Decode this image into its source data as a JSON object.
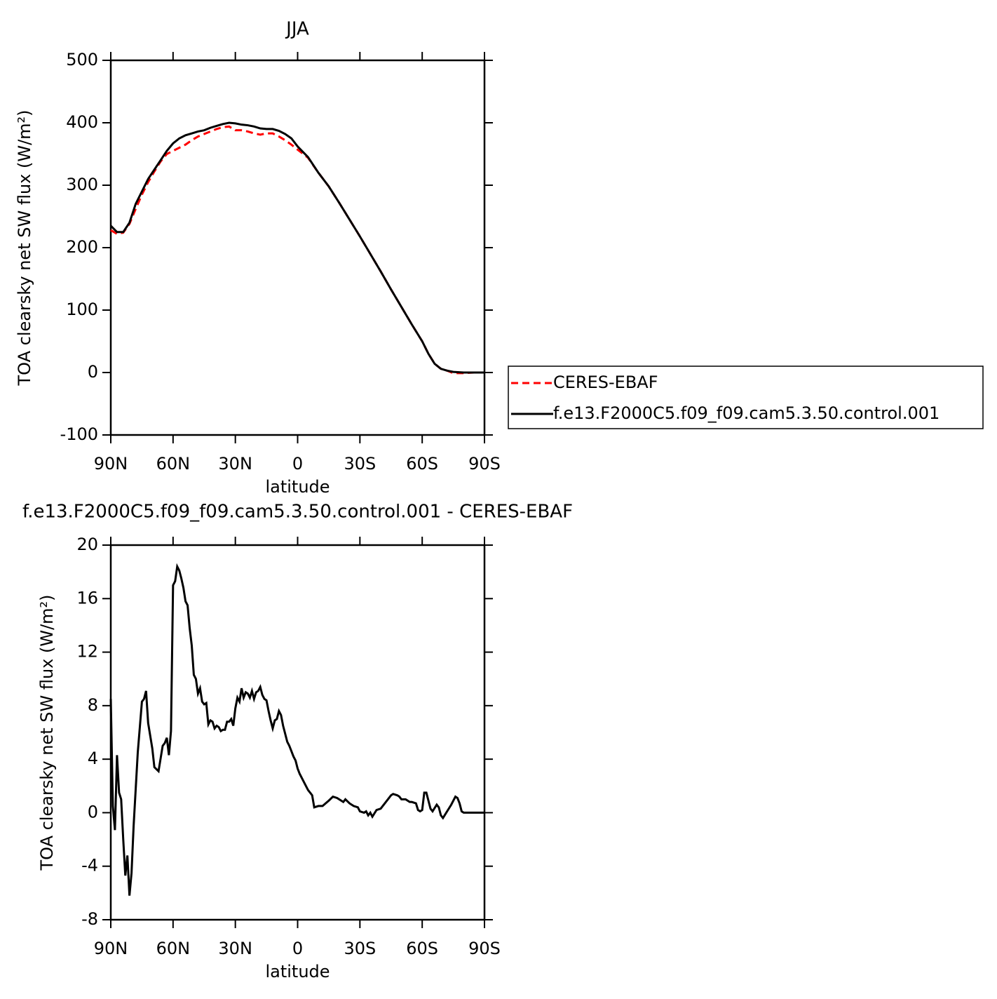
{
  "chart_data": [
    {
      "type": "line",
      "title": "JJA",
      "xlabel": "latitude",
      "ylabel": "TOA clearsky net SW flux (W/m²)",
      "xlim": [
        90,
        -90
      ],
      "xticks": [
        {
          "value": 90,
          "label": "90N"
        },
        {
          "value": 60,
          "label": "60N"
        },
        {
          "value": 30,
          "label": "30N"
        },
        0,
        {
          "value": -30,
          "label": "30S"
        },
        {
          "value": -60,
          "label": "60S"
        },
        {
          "value": -90,
          "label": "90S"
        }
      ],
      "ylim": [
        -100,
        500
      ],
      "yticks": [
        -100,
        0,
        100,
        200,
        300,
        400,
        500
      ],
      "legend": "right",
      "x": [
        90,
        87,
        84,
        81,
        78,
        75,
        72,
        69,
        66,
        63,
        60,
        57,
        54,
        51,
        48,
        45,
        42,
        39,
        36,
        33,
        30,
        27,
        24,
        21,
        18,
        15,
        12,
        9,
        6,
        3,
        0,
        -5,
        -10,
        -15,
        -20,
        -25,
        -30,
        -35,
        -40,
        -45,
        -50,
        -55,
        -60,
        -63,
        -66,
        -69,
        -72,
        -75,
        -80,
        -85,
        -90
      ],
      "series": [
        {
          "name": "CERES-EBAF",
          "color": "#ff0000",
          "line_style": "dashed",
          "values": [
            228,
            222,
            224,
            238,
            262,
            285,
            305,
            322,
            338,
            350,
            355,
            360,
            365,
            372,
            378,
            382,
            386,
            390,
            393,
            394,
            388,
            388,
            386,
            383,
            381,
            383,
            383,
            378,
            372,
            365,
            357,
            344,
            320,
            298,
            272,
            245,
            218,
            190,
            162,
            133,
            105,
            77,
            50,
            30,
            14,
            6,
            3,
            -1,
            -1,
            0,
            0
          ]
        },
        {
          "name": "f.e13.F2000C5.f09_f09.cam5.3.50.control.001",
          "color": "#000000",
          "line_style": "solid",
          "values": [
            235,
            225,
            225,
            240,
            270,
            290,
            310,
            325,
            340,
            355,
            367,
            375,
            380,
            383,
            386,
            388,
            392,
            395,
            398,
            400,
            399,
            397,
            396,
            394,
            391,
            390,
            390,
            387,
            382,
            375,
            362,
            345,
            320,
            298,
            272,
            245,
            218,
            190,
            162,
            133,
            105,
            77,
            50,
            30,
            14,
            6,
            3,
            1,
            0,
            0,
            0
          ]
        }
      ]
    },
    {
      "type": "line",
      "title": "f.e13.F2000C5.f09_f09.cam5.3.50.control.001 - CERES-EBAF",
      "xlabel": "latitude",
      "ylabel": "TOA clearsky net SW flux (W/m²)",
      "xlim": [
        90,
        -90
      ],
      "xticks": [
        {
          "value": 90,
          "label": "90N"
        },
        {
          "value": 60,
          "label": "60N"
        },
        {
          "value": 30,
          "label": "30N"
        },
        0,
        {
          "value": -30,
          "label": "30S"
        },
        {
          "value": -60,
          "label": "60S"
        },
        {
          "value": -90,
          "label": "90S"
        }
      ],
      "ylim": [
        -8,
        20
      ],
      "yticks": [
        -8,
        -4,
        0,
        4,
        8,
        12,
        16,
        20
      ],
      "x": [
        90,
        89,
        88,
        87,
        86,
        85,
        84,
        83,
        82,
        81,
        80,
        79,
        77,
        75,
        74,
        73,
        72,
        70,
        69,
        67,
        65,
        64,
        63,
        62,
        61,
        60,
        59,
        58,
        57,
        56,
        55,
        54,
        53,
        52,
        51,
        50,
        49,
        48,
        47,
        46,
        45,
        44,
        43,
        42,
        41,
        40,
        39,
        38,
        37,
        36,
        35,
        34,
        33,
        32,
        31,
        30,
        29,
        28,
        27,
        26,
        25,
        24,
        23,
        22,
        21,
        20,
        19,
        18,
        17,
        16,
        15,
        14,
        13,
        12,
        11,
        10,
        9,
        8,
        7,
        6,
        5,
        4,
        3,
        2,
        1,
        0,
        -1,
        -2,
        -3,
        -4,
        -5,
        -6,
        -7,
        -8,
        -10,
        -12,
        -15,
        -17,
        -19,
        -21,
        -22,
        -23,
        -25,
        -27,
        -29,
        -30,
        -32,
        -33,
        -34,
        -35,
        -36,
        -38,
        -40,
        -42,
        -44,
        -45,
        -46,
        -48,
        -49,
        -50,
        -52,
        -54,
        -55,
        -57,
        -58,
        -59,
        -60,
        -61,
        -62,
        -63,
        -64,
        -65,
        -67,
        -68,
        -69,
        -70,
        -72,
        -74,
        -76,
        -77,
        -78,
        -79,
        -80,
        -85,
        -90
      ],
      "series": [
        {
          "color": "#000000",
          "values": [
            8.5,
            0.5,
            -1.3,
            4.3,
            1.5,
            1.0,
            -2,
            -4.7,
            -3.2,
            -6.2,
            -4.5,
            -1,
            4.5,
            8.3,
            8.5,
            9.1,
            6.7,
            4.8,
            3.4,
            3.1,
            5.0,
            5.2,
            5.6,
            4.3,
            6.1,
            17.0,
            17.3,
            18.4,
            18.1,
            17.5,
            16.8,
            15.8,
            15.5,
            13.8,
            12.5,
            10.3,
            10.0,
            8.9,
            9.3,
            8.3,
            8.1,
            8.2,
            6.6,
            6.9,
            6.8,
            6.3,
            6.5,
            6.4,
            6.1,
            6.2,
            6.2,
            6.8,
            6.8,
            7.0,
            6.5,
            7.8,
            8.6,
            8.3,
            9.3,
            8.6,
            9.0,
            8.9,
            8.6,
            9.1,
            8.5,
            9.0,
            9.1,
            9.4,
            8.8,
            8.5,
            8.4,
            7.6,
            6.9,
            6.3,
            6.9,
            7.0,
            7.6,
            7.3,
            6.5,
            5.9,
            5.3,
            5.0,
            4.6,
            4.2,
            3.9,
            3.3,
            2.9,
            2.6,
            2.3,
            2.0,
            1.7,
            1.5,
            1.3,
            0.4,
            0.5,
            0.5,
            0.9,
            1.2,
            1.1,
            0.9,
            0.8,
            1.0,
            0.7,
            0.5,
            0.4,
            0.1,
            0.0,
            0.1,
            -0.2,
            0.0,
            -0.3,
            0.2,
            0.3,
            0.7,
            1.1,
            1.3,
            1.4,
            1.3,
            1.2,
            1.0,
            1.0,
            0.8,
            0.8,
            0.7,
            0.2,
            0.1,
            0.2,
            1.5,
            1.5,
            0.9,
            0.3,
            0.1,
            0.6,
            0.4,
            -0.2,
            -0.4,
            0.1,
            0.6,
            1.2,
            1.1,
            0.7,
            0.1,
            0,
            0,
            0
          ]
        }
      ]
    }
  ]
}
